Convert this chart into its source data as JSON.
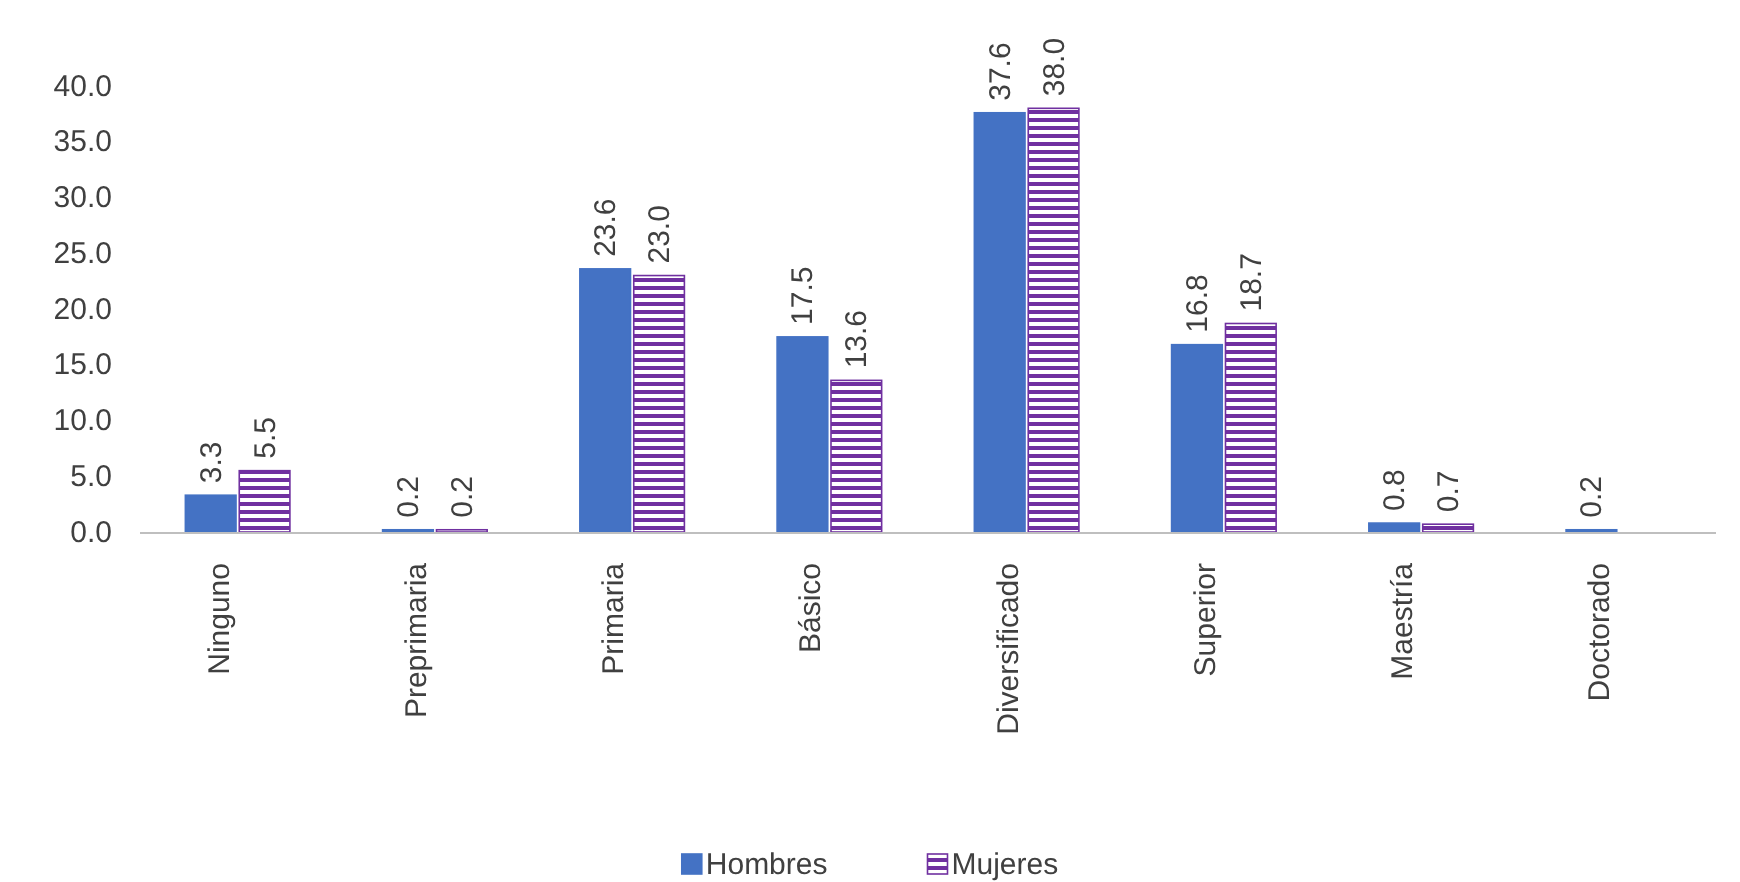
{
  "chart_data": {
    "type": "bar",
    "categories": [
      "Ninguno",
      "Preprimaria",
      "Primaria",
      "Básico",
      "Diversificado",
      "Superior",
      "Maestría",
      "Doctorado"
    ],
    "series": [
      {
        "name": "Hombres",
        "color": "#4472c4",
        "values": [
          3.3,
          0.2,
          23.6,
          17.5,
          37.6,
          16.8,
          0.8,
          0.2
        ],
        "value_labels": [
          "3.3",
          "0.2",
          "23.6",
          "17.5",
          "37.6",
          "16.8",
          "0.8",
          "0.2"
        ]
      },
      {
        "name": "Mujeres",
        "color": "#7030a0",
        "values": [
          5.5,
          0.2,
          23.0,
          13.6,
          38.0,
          18.7,
          0.7,
          null
        ],
        "value_labels": [
          "5.5",
          "0.2",
          "23.0",
          "13.6",
          "38.0",
          "18.7",
          "0.7",
          null
        ]
      }
    ],
    "ylim": [
      0,
      40
    ],
    "yticks": [
      {
        "value": 0,
        "label": "0.0"
      },
      {
        "value": 5,
        "label": "5.0"
      },
      {
        "value": 10,
        "label": "10.0"
      },
      {
        "value": 15,
        "label": "15.0"
      },
      {
        "value": 20,
        "label": "20.0"
      },
      {
        "value": 25,
        "label": "25.0"
      },
      {
        "value": 30,
        "label": "30.0"
      },
      {
        "value": 35,
        "label": "35.0"
      },
      {
        "value": 40,
        "label": "40.0"
      }
    ],
    "grid": false,
    "legend": "bottom"
  }
}
